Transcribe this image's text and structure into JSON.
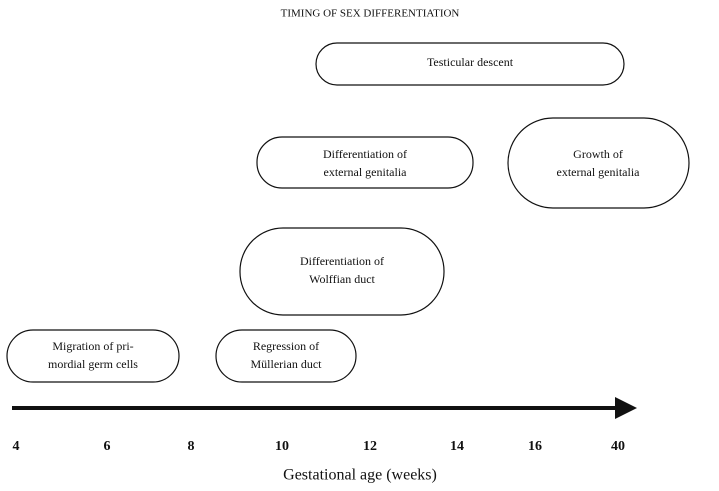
{
  "title": "TIMING OF SEX DIFFERENTIATION",
  "events": [
    {
      "lines": [
        "Testicular descent"
      ]
    },
    {
      "lines": [
        "Differentiation of",
        "external genitalia"
      ]
    },
    {
      "lines": [
        "Growth of",
        "external genitalia"
      ]
    },
    {
      "lines": [
        "Differentiation of",
        "Wolffian duct"
      ]
    },
    {
      "lines": [
        "Migration of pri-",
        "mordial germ cells"
      ]
    },
    {
      "lines": [
        "Regression of",
        "Müllerian duct"
      ]
    }
  ],
  "axis": {
    "ticks": [
      "4",
      "6",
      "8",
      "10",
      "12",
      "14",
      "16",
      "40"
    ],
    "label": "Gestational age (weeks)"
  }
}
